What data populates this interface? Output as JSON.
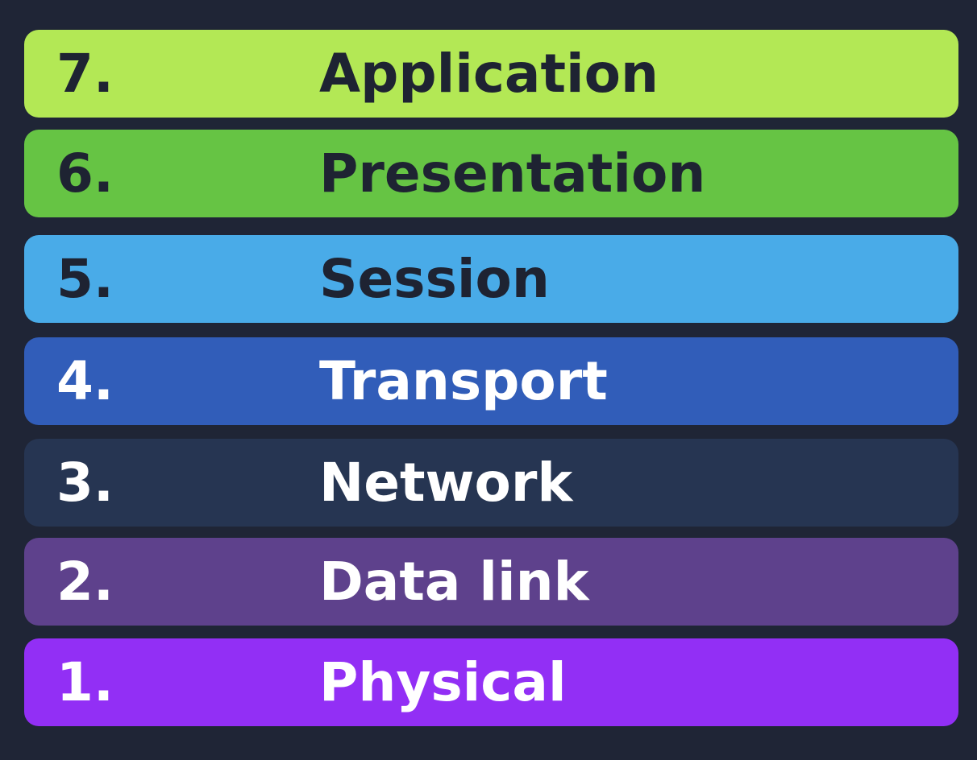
{
  "layers": [
    {
      "number": "7.",
      "name": "Application",
      "bg": "#b3e855",
      "fg": "#1e2332"
    },
    {
      "number": "6.",
      "name": "Presentation",
      "bg": "#66c444",
      "fg": "#1e2332"
    },
    {
      "number": "5.",
      "name": "Session",
      "bg": "#49abe8",
      "fg": "#1e2332"
    },
    {
      "number": "4.",
      "name": "Transport",
      "bg": "#315db9",
      "fg": "#ffffff"
    },
    {
      "number": "3.",
      "name": "Network",
      "bg": "#263552",
      "fg": "#ffffff"
    },
    {
      "number": "2.",
      "name": "Data link",
      "bg": "#5e418c",
      "fg": "#ffffff"
    },
    {
      "number": "1.",
      "name": "Physical",
      "bg": "#922ff5",
      "fg": "#ffffff"
    }
  ],
  "colors": {
    "background": "#1f2536"
  }
}
